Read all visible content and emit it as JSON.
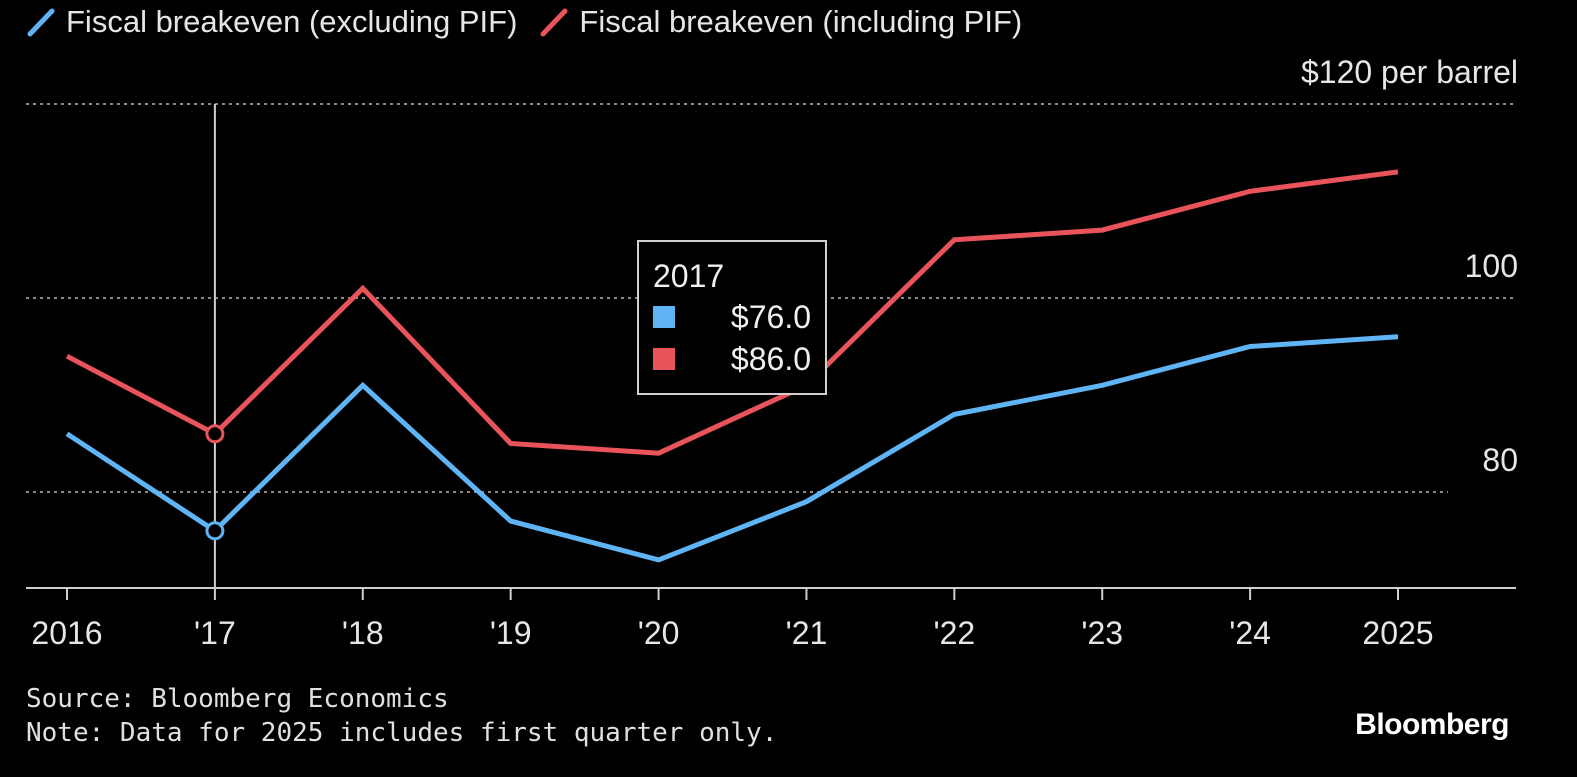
{
  "legend": {
    "items": [
      {
        "label": "Fiscal breakeven (excluding PIF)",
        "color": "#5fb4f5",
        "icon": "diagonal-line-icon"
      },
      {
        "label": "Fiscal breakeven (including PIF)",
        "color": "#e8545a",
        "icon": "diagonal-line-icon"
      }
    ]
  },
  "chart_data": {
    "type": "line",
    "title": "",
    "xlabel": "",
    "ylabel": "$120 per barrel",
    "unit_label": "$120 per barrel",
    "categories": [
      "2016",
      "'17",
      "'18",
      "'19",
      "'20",
      "'21",
      "'22",
      "'23",
      "'24",
      "2025"
    ],
    "series": [
      {
        "name": "Fiscal breakeven (excluding PIF)",
        "color": "#5fb4f5",
        "values": [
          86.0,
          76.0,
          91.0,
          77.0,
          73.0,
          79.0,
          88.0,
          91.0,
          95.0,
          96.0
        ]
      },
      {
        "name": "Fiscal breakeven (including PIF)",
        "color": "#e8545a",
        "values": [
          94.0,
          86.0,
          101.0,
          85.0,
          84.0,
          91.0,
          106.0,
          107.0,
          111.0,
          113.0
        ]
      }
    ],
    "yticks": [
      80,
      100,
      120
    ],
    "ytick_labels": [
      "80",
      "100",
      "$120 per barrel"
    ],
    "ylim": [
      70,
      121
    ],
    "grid": true,
    "legend_position": "top-left",
    "highlight_index": 1
  },
  "tooltip": {
    "title": "2017",
    "rows": [
      {
        "value": "$76.0",
        "color": "#5fb4f5"
      },
      {
        "value": "$86.0",
        "color": "#e8545a"
      }
    ]
  },
  "footer": {
    "source": "Source: Bloomberg Economics",
    "note": "Note: Data for 2025 includes first quarter only."
  },
  "brand": "Bloomberg"
}
